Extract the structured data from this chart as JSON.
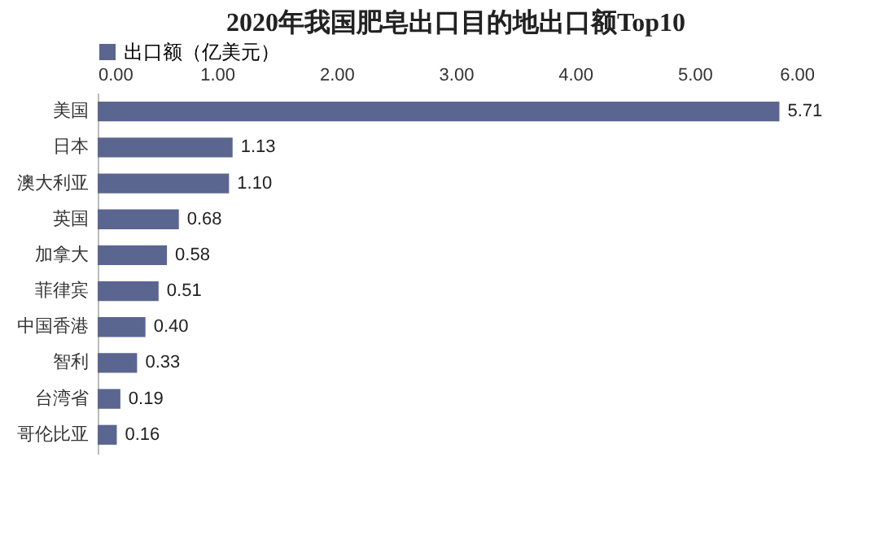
{
  "chart_data": {
    "type": "bar",
    "orientation": "horizontal",
    "title": "2020年我国肥皂出口目的地出口额Top10",
    "categories": [
      "美国",
      "日本",
      "澳大利亚",
      "英国",
      "加拿大",
      "菲律宾",
      "中国香港",
      "智利",
      "台湾省",
      "哥伦比亚"
    ],
    "series": [
      {
        "name": "出口额（亿美元）",
        "color": "#5b6690",
        "values": [
          5.71,
          1.13,
          1.1,
          0.68,
          0.58,
          0.51,
          0.4,
          0.33,
          0.19,
          0.16
        ],
        "value_labels": [
          "5.71",
          "1.13",
          "1.10",
          "0.68",
          "0.58",
          "0.51",
          "0.40",
          "0.33",
          "0.19",
          "0.16"
        ]
      }
    ],
    "xlim": [
      0,
      6
    ],
    "xticks": [
      {
        "value": 0,
        "label": "0.00"
      },
      {
        "value": 1,
        "label": "1.00"
      },
      {
        "value": 2,
        "label": "2.00"
      },
      {
        "value": 3,
        "label": "3.00"
      },
      {
        "value": 4,
        "label": "4.00"
      },
      {
        "value": 5,
        "label": "5.00"
      },
      {
        "value": 6,
        "label": "6.00"
      }
    ],
    "legend": "top",
    "grid": false
  }
}
